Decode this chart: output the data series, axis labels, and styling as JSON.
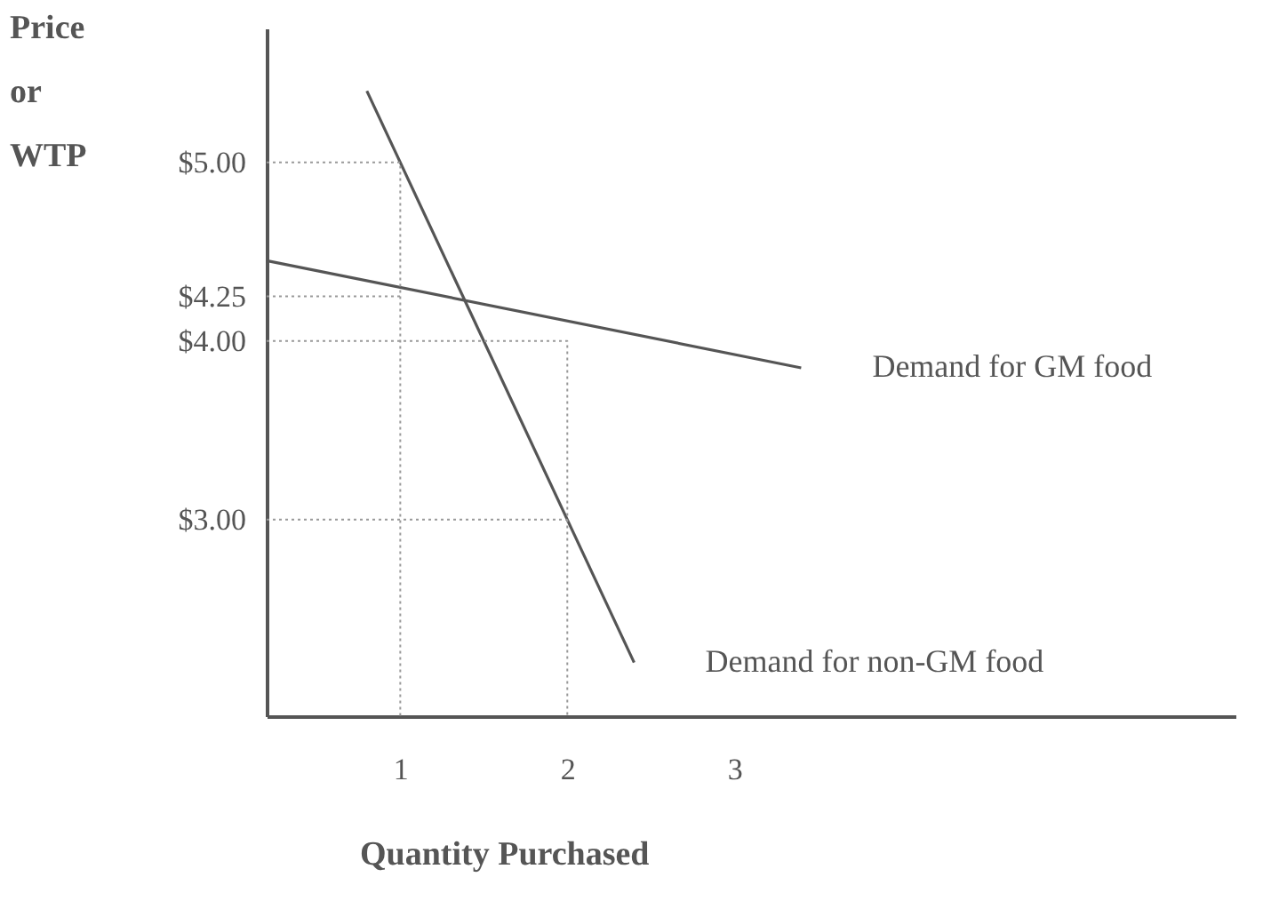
{
  "chart_data": {
    "type": "line",
    "xlabel": "Quantity Purchased",
    "ylabel": "Price or WTP",
    "xlim": [
      0.2,
      6.0
    ],
    "ylim": [
      1.9,
      5.75
    ],
    "xticks": [
      1,
      2,
      3
    ],
    "yticks": [
      {
        "value": 3,
        "label": "$3.00"
      },
      {
        "value": 4,
        "label": "$4.00"
      },
      {
        "value": 4.25,
        "label": "$4.25"
      },
      {
        "value": 5,
        "label": "$5.00"
      }
    ],
    "grid": false,
    "legend": false,
    "series": [
      {
        "name": "Demand for GM food",
        "color": "#555555",
        "line_style": "solid",
        "x": [
          0.2,
          3.4
        ],
        "values": [
          4.45,
          3.85
        ]
      },
      {
        "name": "Demand for non-GM food",
        "color": "#555555",
        "line_style": "solid",
        "x": [
          0.8,
          2.4
        ],
        "values": [
          5.4,
          2.2
        ]
      },
      {
        "color": "#999999",
        "line_style": "dotted",
        "x": [
          0.2,
          1,
          1
        ],
        "values": [
          5,
          5,
          1.9
        ]
      },
      {
        "color": "#999999",
        "line_style": "dotted",
        "x": [
          0.2,
          1
        ],
        "values": [
          4.25,
          4.25
        ]
      },
      {
        "color": "#999999",
        "line_style": "dotted",
        "x": [
          0.2,
          2,
          2
        ],
        "values": [
          4,
          4,
          1.9
        ]
      },
      {
        "color": "#999999",
        "line_style": "dotted",
        "x": [
          0.2,
          2
        ],
        "values": [
          3,
          3
        ]
      }
    ]
  }
}
